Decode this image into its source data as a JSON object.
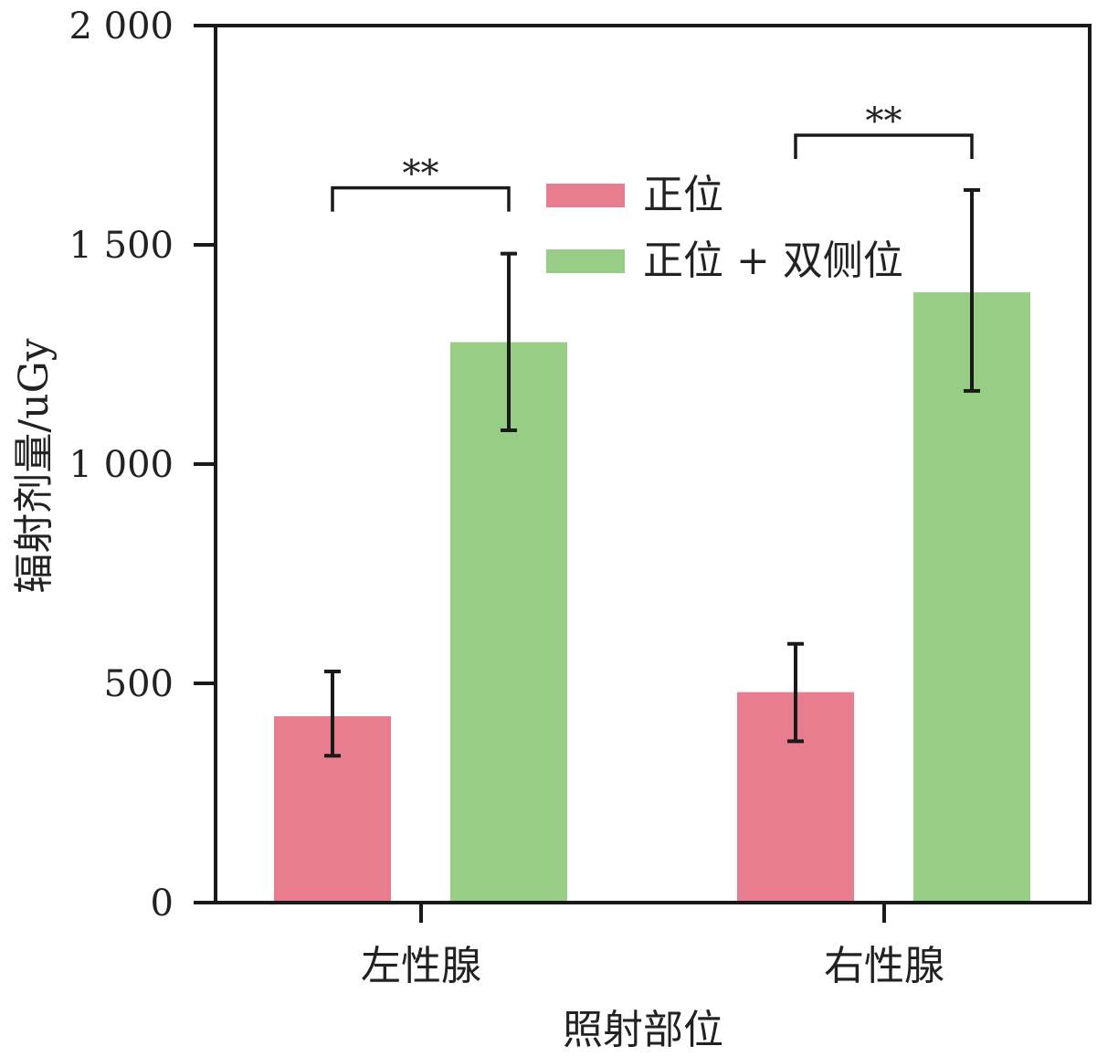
{
  "chart_data": {
    "type": "bar",
    "xlabel": "照射部位",
    "ylabel": "辐射剂量/uGy",
    "ylim": [
      0,
      2000
    ],
    "yticks": [
      0,
      500,
      1000,
      1500,
      2000
    ],
    "ytick_labels": [
      "0",
      "500",
      "1 000",
      "1 500",
      "2 000"
    ],
    "categories": [
      "左性腺",
      "右性腺"
    ],
    "series": [
      {
        "name": "正位",
        "color": "#e87d90",
        "values": [
          425,
          480
        ],
        "error_low": [
          335,
          368
        ],
        "error_high": [
          527,
          590
        ]
      },
      {
        "name": "正位 + 双侧位",
        "color": "#97cd84",
        "values": [
          1278,
          1392
        ],
        "error_low": [
          1077,
          1167
        ],
        "error_high": [
          1480,
          1625
        ]
      }
    ],
    "significance": [
      {
        "category_index": 0,
        "label": "**",
        "level": 1630
      },
      {
        "category_index": 1,
        "label": "**",
        "level": 1750
      }
    ],
    "legend_position": "top-center",
    "grid": false
  }
}
